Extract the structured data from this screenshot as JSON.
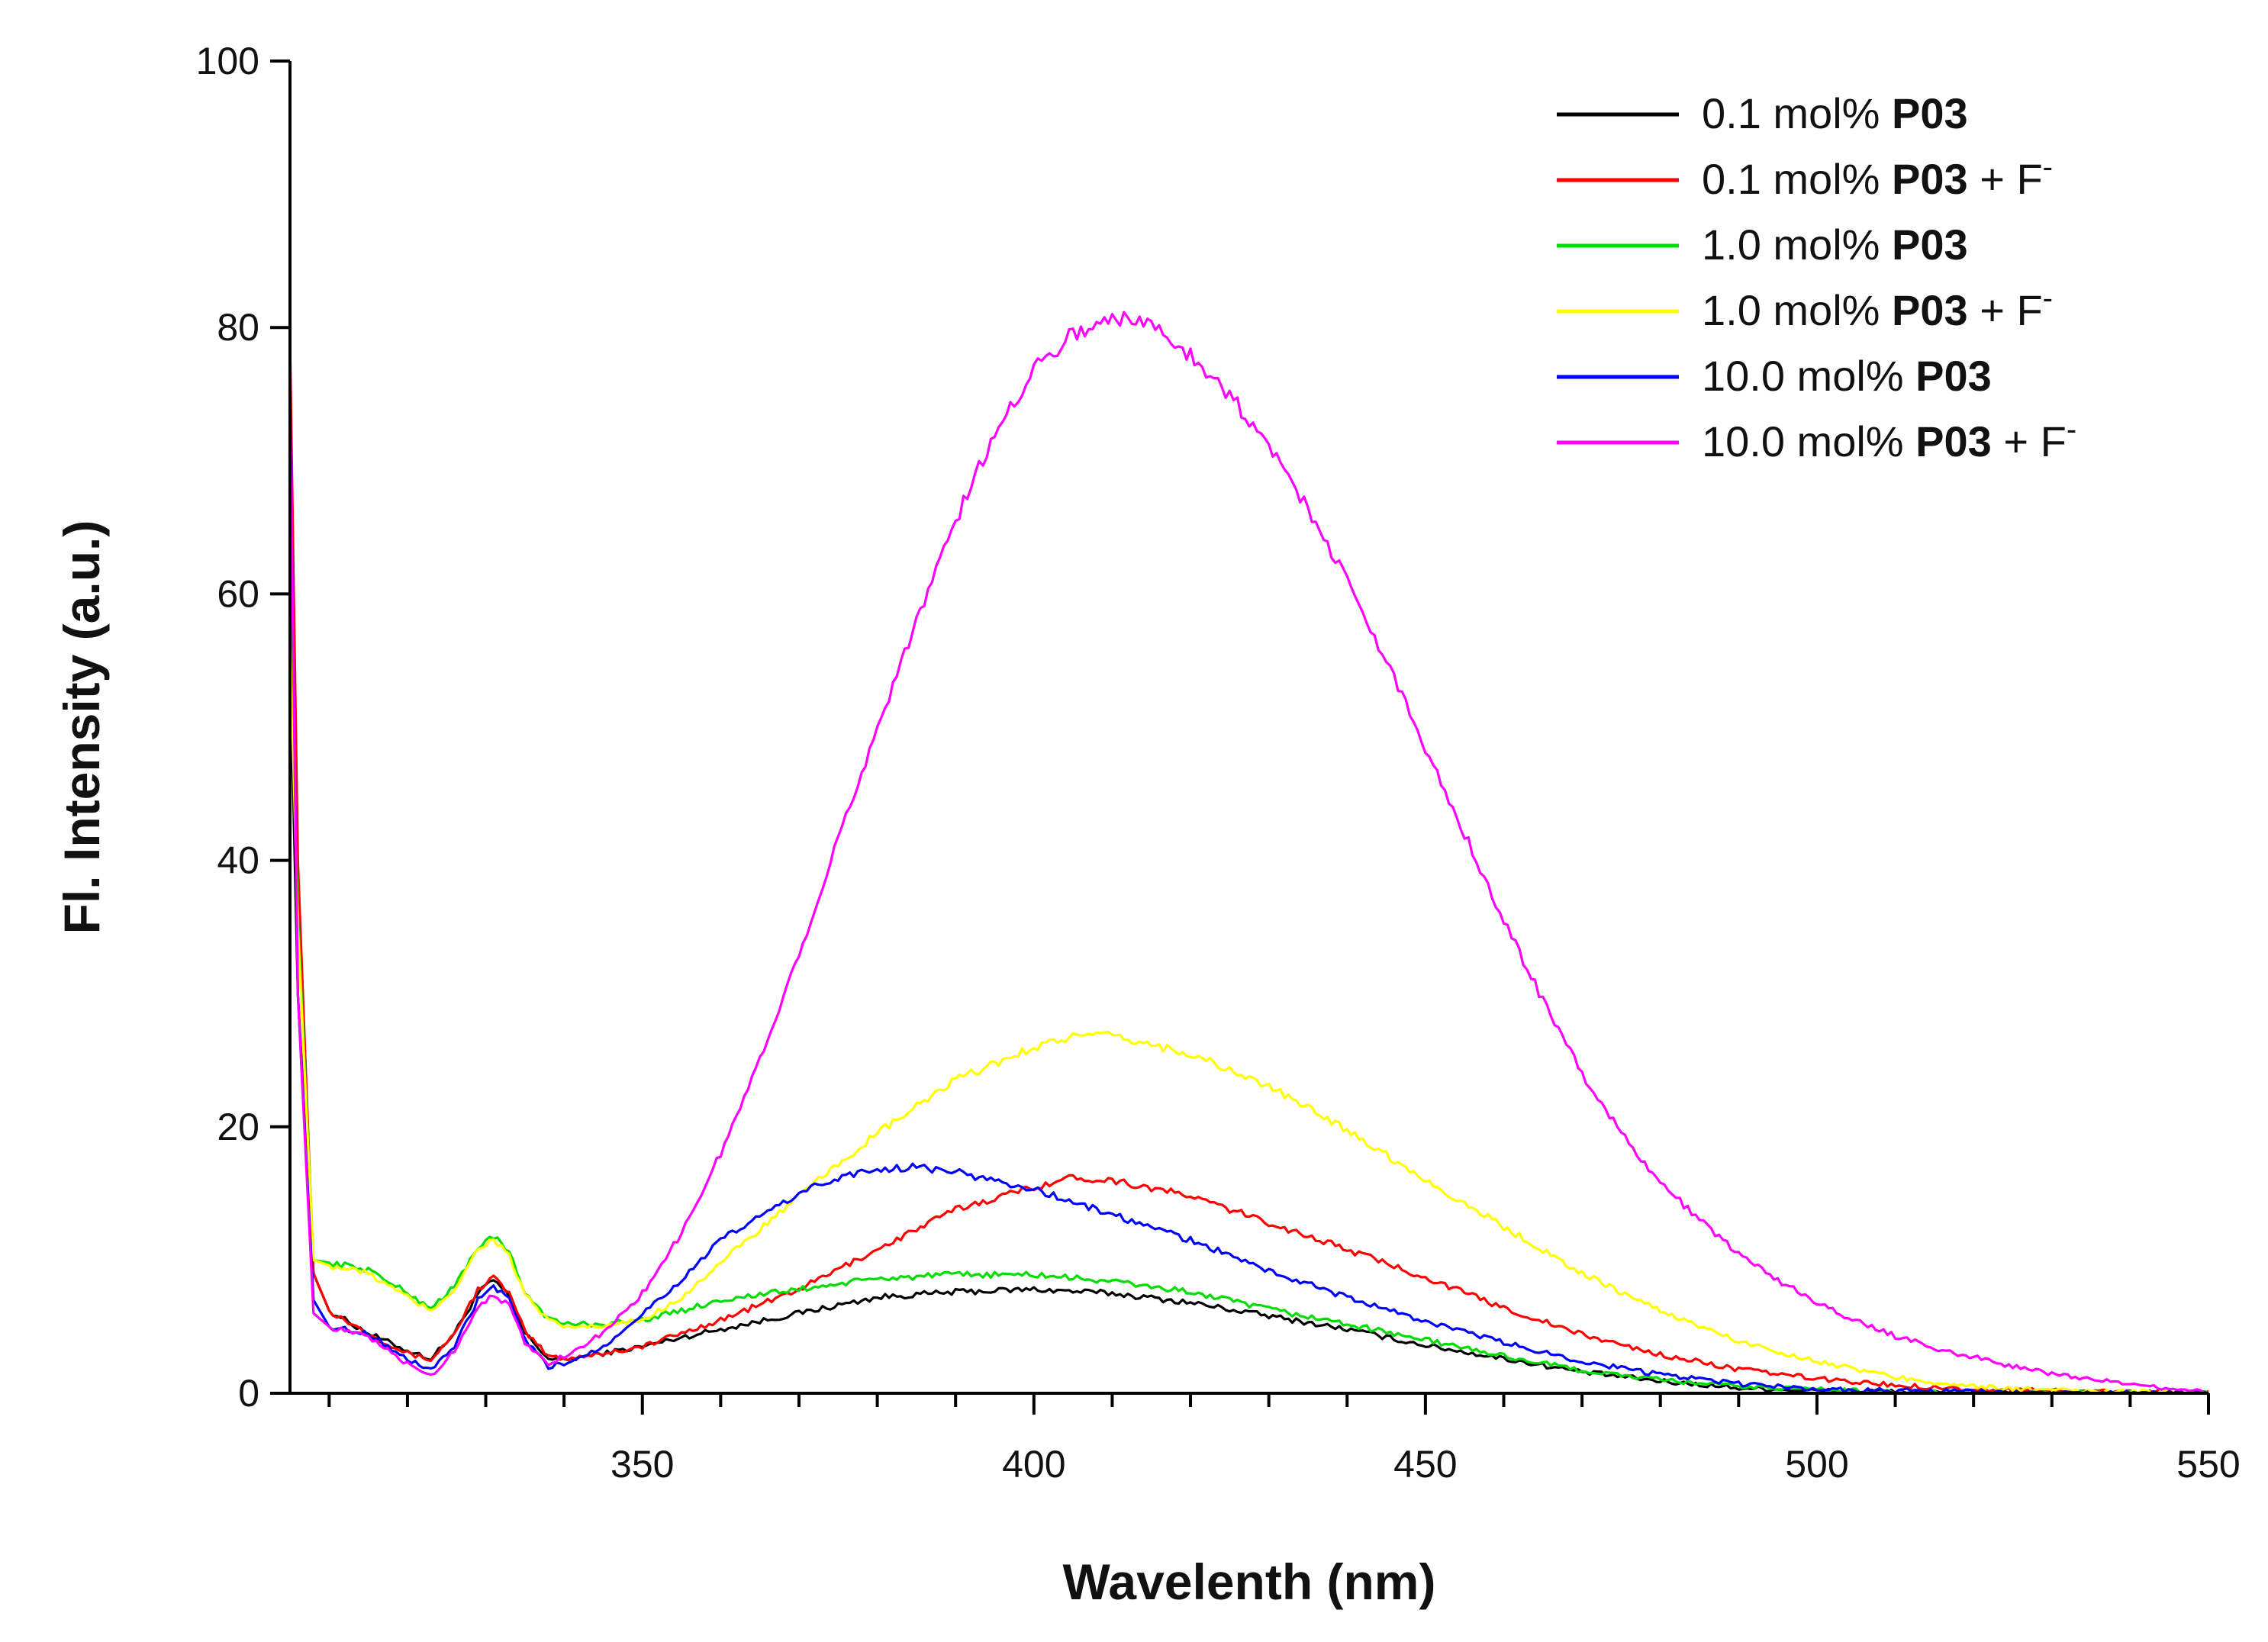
{
  "chart_data": {
    "type": "line",
    "title": "",
    "xlabel": "Wavelenth (nm)",
    "ylabel": "Fl. Intensity (a.u.)",
    "xlim": [
      305,
      550
    ],
    "ylim": [
      0,
      100
    ],
    "x_ticks": [
      350,
      400,
      450,
      500,
      550
    ],
    "x_tick_labels": [
      "350",
      "400",
      "450",
      "500",
      "550"
    ],
    "y_ticks": [
      0,
      20,
      40,
      60,
      80,
      100
    ],
    "y_tick_labels": [
      "0",
      "20",
      "40",
      "60",
      "80",
      "100"
    ],
    "legend_position": "top-right",
    "series": [
      {
        "name": "0.1 mol% P03",
        "label_prefix": "0.1 mol% ",
        "label_bold": "P03",
        "label_suffix": "",
        "color": "#000000",
        "x": [
          305,
          306,
          308,
          310,
          315,
          320,
          323,
          326,
          329,
          331,
          333,
          335,
          338,
          340,
          345,
          350,
          355,
          360,
          370,
          380,
          390,
          400,
          410,
          420,
          430,
          440,
          450,
          460,
          470,
          480,
          490,
          500,
          510,
          520,
          530,
          540,
          550
        ],
        "y": [
          56,
          30,
          9,
          6.2,
          4.5,
          3.2,
          2.6,
          4.5,
          7.5,
          8.5,
          7.2,
          4.5,
          2.6,
          2.5,
          3.0,
          3.5,
          4.2,
          4.8,
          6.0,
          7.2,
          7.6,
          7.8,
          7.5,
          6.8,
          5.8,
          4.8,
          3.6,
          2.6,
          1.6,
          0.9,
          0.4,
          0.2,
          0.1,
          0.1,
          0.0,
          0.0,
          0.0
        ]
      },
      {
        "name": "0.1 mol% P03 + F-",
        "label_prefix": "0.1 mol% ",
        "label_bold": "P03",
        "label_suffix": " + F",
        "label_sup": "-",
        "color": "#ff0000",
        "x": [
          305,
          306,
          308,
          310,
          315,
          320,
          323,
          326,
          329,
          331,
          333,
          335,
          338,
          340,
          345,
          350,
          355,
          360,
          370,
          380,
          390,
          400,
          405,
          410,
          420,
          430,
          440,
          450,
          460,
          470,
          480,
          490,
          500,
          510,
          520,
          530,
          540,
          550
        ],
        "y": [
          79,
          40,
          9,
          6.2,
          4.5,
          3.0,
          2.5,
          4.5,
          7.8,
          8.7,
          7.5,
          4.6,
          2.8,
          2.6,
          3.0,
          3.5,
          4.5,
          5.5,
          7.8,
          10.8,
          13.8,
          15.5,
          16.2,
          16.0,
          14.8,
          12.8,
          10.8,
          8.7,
          6.4,
          4.4,
          2.9,
          1.8,
          1.1,
          0.6,
          0.3,
          0.2,
          0.1,
          0.0
        ]
      },
      {
        "name": "1.0 mol% P03",
        "label_prefix": "1.0 mol% ",
        "label_bold": "P03",
        "label_suffix": "",
        "color": "#00dd00",
        "x": [
          305,
          306,
          308,
          310,
          315,
          320,
          323,
          326,
          329,
          331,
          333,
          335,
          338,
          340,
          345,
          350,
          355,
          360,
          370,
          380,
          390,
          400,
          410,
          420,
          430,
          440,
          450,
          460,
          470,
          480,
          490,
          500,
          510,
          520,
          530,
          540,
          550
        ],
        "y": [
          60,
          36,
          10,
          9.8,
          9.3,
          7.5,
          6.4,
          8.0,
          11.0,
          11.8,
          10.5,
          7.6,
          5.6,
          5.2,
          5.2,
          5.5,
          6.2,
          7.0,
          7.8,
          8.6,
          8.9,
          8.9,
          8.4,
          7.6,
          6.3,
          5.2,
          4.0,
          2.8,
          1.7,
          1.0,
          0.5,
          0.3,
          0.1,
          0.0,
          0.0,
          0.0,
          0.0
        ]
      },
      {
        "name": "1.0 mol% P03 + F-",
        "label_prefix": "1.0 mol% ",
        "label_bold": "P03",
        "label_suffix": " + F",
        "label_sup": "-",
        "color": "#ffff00",
        "x": [
          305,
          306,
          308,
          310,
          315,
          320,
          323,
          326,
          329,
          331,
          333,
          335,
          338,
          340,
          345,
          350,
          355,
          360,
          370,
          380,
          390,
          400,
          405,
          410,
          420,
          430,
          440,
          450,
          460,
          470,
          480,
          490,
          500,
          510,
          520,
          530,
          540,
          550
        ],
        "y": [
          57,
          35,
          10,
          9.6,
          9.0,
          7.2,
          6.2,
          7.8,
          10.8,
          11.6,
          10.3,
          7.4,
          5.4,
          5.0,
          5.0,
          5.5,
          7.2,
          9.8,
          14.8,
          19.5,
          23.5,
          26.0,
          26.8,
          26.8,
          25.5,
          23.0,
          19.8,
          16.0,
          12.5,
          9.0,
          6.2,
          3.9,
          2.4,
          1.2,
          0.5,
          0.2,
          0.1,
          0.0
        ]
      },
      {
        "name": "10.0 mol% P03",
        "label_prefix": "10.0 mol% ",
        "label_bold": "P03",
        "label_suffix": "",
        "color": "#0000ff",
        "x": [
          305,
          306,
          308,
          310,
          315,
          320,
          323,
          326,
          329,
          331,
          333,
          335,
          338,
          340,
          345,
          350,
          355,
          360,
          370,
          375,
          380,
          385,
          390,
          400,
          410,
          420,
          430,
          440,
          450,
          460,
          470,
          480,
          490,
          500,
          510,
          520,
          530,
          540,
          550
        ],
        "y": [
          75,
          30,
          7,
          5.0,
          4.5,
          2.5,
          1.8,
          3.5,
          7.0,
          8.0,
          7.0,
          4.0,
          2.0,
          2.2,
          3.5,
          6.0,
          8.5,
          11.5,
          15.0,
          16.2,
          16.8,
          17.0,
          16.6,
          15.3,
          13.4,
          11.5,
          9.2,
          7.2,
          5.4,
          3.8,
          2.4,
          1.4,
          0.7,
          0.3,
          0.2,
          0.1,
          0.0,
          0.0,
          0.0
        ]
      },
      {
        "name": "10.0 mol% P03 + F-",
        "label_prefix": "10.0 mol% ",
        "label_bold": "P03",
        "label_suffix": " + F",
        "label_sup": "-",
        "color": "#ff00ff",
        "x": [
          305,
          306,
          308,
          310,
          315,
          320,
          323,
          326,
          329,
          331,
          333,
          335,
          338,
          340,
          345,
          350,
          355,
          360,
          365,
          370,
          375,
          380,
          385,
          390,
          395,
          400,
          405,
          410,
          415,
          420,
          425,
          430,
          435,
          440,
          445,
          450,
          455,
          460,
          465,
          470,
          475,
          480,
          485,
          490,
          495,
          500,
          505,
          510,
          515,
          520,
          525,
          530,
          535,
          540,
          545,
          550
        ],
        "y": [
          74,
          30,
          6,
          5.0,
          4.2,
          2.2,
          1.3,
          3.2,
          6.5,
          7.5,
          6.5,
          3.8,
          2.2,
          2.8,
          4.5,
          7.5,
          12.0,
          18.0,
          25.0,
          33.0,
          41.5,
          50.0,
          58.0,
          65.5,
          72.0,
          77.0,
          79.5,
          80.8,
          80.2,
          78.0,
          75.0,
          71.0,
          66.5,
          61.0,
          55.0,
          48.5,
          42.0,
          35.5,
          29.5,
          24.0,
          19.5,
          15.8,
          13.0,
          10.5,
          8.5,
          6.8,
          5.4,
          4.3,
          3.4,
          2.7,
          2.0,
          1.5,
          1.0,
          0.7,
          0.4,
          0.1
        ]
      }
    ]
  }
}
